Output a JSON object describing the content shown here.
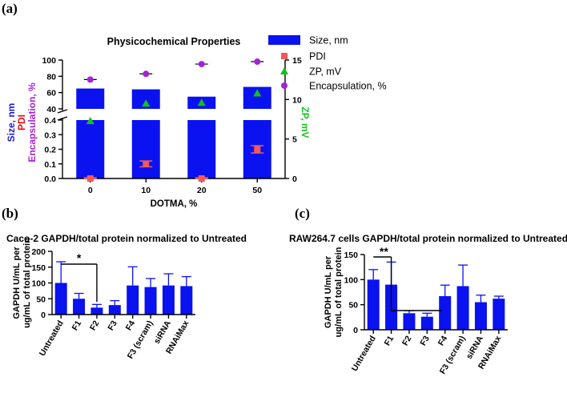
{
  "panel_labels": {
    "a": "(a)",
    "b": "(b)",
    "c": "(c)"
  },
  "colors": {
    "bar": "#0a12f0",
    "pdi": "#f05a5a",
    "zp": "#13c21a",
    "encap": "#a324d8",
    "size_label": "#1a1ad8",
    "pdi_label": "#e01010",
    "encap_label": "#a324d8",
    "zp_label": "#13c21a"
  },
  "chart_data": [
    {
      "id": "a",
      "type": "bar",
      "title": "Physicochemical Properties",
      "xlabel": "DOTMA, %",
      "categories": [
        "0",
        "10",
        "20",
        "50"
      ],
      "ylabel_lines": [
        "Size, nm",
        "PDI",
        "Encapsulation, %"
      ],
      "y2label": "ZP, mV",
      "ylim_top": [
        40,
        100
      ],
      "yticks_top": [
        "40",
        "60",
        "80",
        "100"
      ],
      "ylim_bottom": [
        0,
        0.4
      ],
      "yticks_bottom": [
        "0.0",
        "0.1",
        "0.2",
        "0.3",
        "0.4"
      ],
      "y2lim": [
        0,
        15
      ],
      "y2ticks": [
        "0",
        "5",
        "10",
        "15"
      ],
      "series": [
        {
          "name": "Size, nm",
          "marker": "bar",
          "values": [
            65,
            64,
            55,
            67
          ]
        },
        {
          "name": "PDI",
          "marker": "square",
          "values": [
            0.0,
            0.1,
            0.0,
            0.2
          ],
          "errors": [
            0.005,
            0.02,
            0.005,
            0.025
          ]
        },
        {
          "name": "ZP, mV",
          "marker": "triangle",
          "axis": "right",
          "values": [
            7.3,
            9.5,
            9.6,
            10.8
          ]
        },
        {
          "name": "Encapsulation, %",
          "marker": "circle",
          "values": [
            76,
            83,
            95,
            98
          ],
          "errors": [
            1.5,
            1.5,
            1.5,
            1.5
          ]
        }
      ]
    },
    {
      "id": "b",
      "type": "bar",
      "title": "Caco-2 GAPDH/total protein normalized to Untreated",
      "ylabel_lines": [
        "GAPDH U/mL per",
        "ug/mL of total protein"
      ],
      "categories": [
        "Untreated",
        "F1",
        "F2",
        "F3",
        "F4",
        "F3 (scram)",
        "siRNA",
        "RNAiMax"
      ],
      "values": [
        100,
        50,
        22,
        30,
        92,
        87,
        92,
        90
      ],
      "errors": [
        67,
        17,
        10,
        14,
        59,
        27,
        37,
        30
      ],
      "ylim": [
        0,
        200
      ],
      "yticks": [
        "0",
        "50",
        "100",
        "150",
        "200"
      ],
      "significance": "*"
    },
    {
      "id": "c",
      "type": "bar",
      "title": "RAW264.7 cells GAPDH/total protein normalized to Untreated",
      "ylabel_lines": [
        "GAPDH U/mL per",
        "ug/mL of total protein"
      ],
      "categories": [
        "Untreated",
        "F1",
        "F2",
        "F3",
        "F4",
        "F3 (scram)",
        "siRNA",
        "RNAiMax"
      ],
      "values": [
        100,
        90,
        33,
        26,
        67,
        87,
        55,
        62
      ],
      "errors": [
        20,
        45,
        5,
        7,
        22,
        42,
        14,
        5
      ],
      "ylim": [
        0,
        150
      ],
      "yticks": [
        "0",
        "50",
        "100",
        "150"
      ],
      "significance": "**"
    }
  ]
}
